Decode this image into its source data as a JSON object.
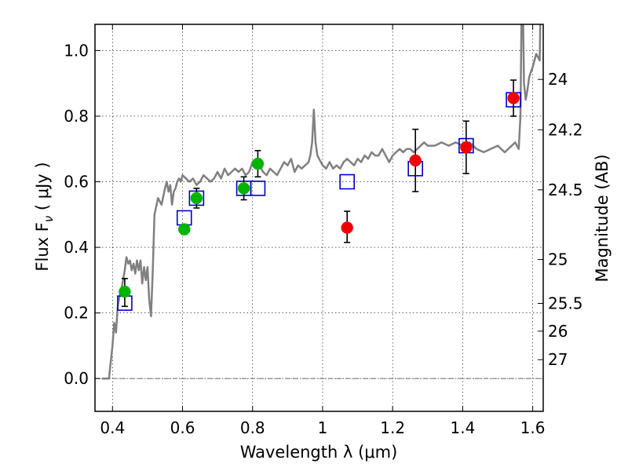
{
  "chart_data": {
    "type": "scatter",
    "xlabel": "Wavelength  λ (μm)",
    "ylabel": "Flux  F",
    "ylabel_sub": "ν",
    "ylabel_units": " ( μJy )",
    "y2label": "Magnitude (AB)",
    "xlim": [
      0.35,
      1.63
    ],
    "ylim": [
      -0.1,
      1.08
    ],
    "x_ticks": [
      0.4,
      0.6,
      0.8,
      1.0,
      1.2,
      1.4,
      1.6
    ],
    "x_tick_labels": [
      "0.4",
      "0.6",
      "0.8",
      "1",
      "1.2",
      "1.4",
      "1.6"
    ],
    "y_ticks": [
      0.0,
      0.2,
      0.4,
      0.6,
      0.8,
      1.0
    ],
    "y_tick_labels": [
      "0.0",
      "0.2",
      "0.4",
      "0.6",
      "0.8",
      "1.0"
    ],
    "y2_ticks": [
      {
        "mag": 24,
        "label": "24"
      },
      {
        "mag": 24.2,
        "label": "24.2"
      },
      {
        "mag": 24.5,
        "label": "24.5"
      },
      {
        "mag": 25,
        "label": "25"
      },
      {
        "mag": 25.5,
        "label": "25.5"
      },
      {
        "mag": 26,
        "label": "26"
      },
      {
        "mag": 27,
        "label": "27"
      }
    ],
    "grid": true,
    "colors": {
      "model_line": "#808080",
      "model_squares": "#0000cc",
      "green_points": "#00b400",
      "red_points": "#ee0000",
      "error_bars": "#000000",
      "zero_line": "#555555"
    },
    "series": [
      {
        "kind": "line",
        "points": [
          [
            0.37,
            0.0
          ],
          [
            0.39,
            0.0
          ],
          [
            0.4,
            0.1
          ],
          [
            0.405,
            0.17
          ],
          [
            0.41,
            0.14
          ],
          [
            0.415,
            0.22
          ],
          [
            0.42,
            0.25
          ],
          [
            0.425,
            0.27
          ],
          [
            0.43,
            0.3
          ],
          [
            0.435,
            0.33
          ],
          [
            0.44,
            0.37
          ],
          [
            0.445,
            0.35
          ],
          [
            0.45,
            0.36
          ],
          [
            0.455,
            0.33
          ],
          [
            0.46,
            0.35
          ],
          [
            0.465,
            0.32
          ],
          [
            0.47,
            0.36
          ],
          [
            0.475,
            0.33
          ],
          [
            0.48,
            0.36
          ],
          [
            0.485,
            0.29
          ],
          [
            0.49,
            0.34
          ],
          [
            0.495,
            0.3
          ],
          [
            0.5,
            0.34
          ],
          [
            0.505,
            0.24
          ],
          [
            0.51,
            0.19
          ],
          [
            0.515,
            0.33
          ],
          [
            0.52,
            0.5
          ],
          [
            0.53,
            0.55
          ],
          [
            0.54,
            0.53
          ],
          [
            0.55,
            0.58
          ],
          [
            0.555,
            0.6
          ],
          [
            0.56,
            0.57
          ],
          [
            0.565,
            0.59
          ],
          [
            0.57,
            0.53
          ],
          [
            0.575,
            0.57
          ],
          [
            0.58,
            0.58
          ],
          [
            0.585,
            0.6
          ],
          [
            0.59,
            0.61
          ],
          [
            0.595,
            0.6
          ],
          [
            0.6,
            0.62
          ],
          [
            0.61,
            0.61
          ],
          [
            0.62,
            0.6
          ],
          [
            0.63,
            0.61
          ],
          [
            0.64,
            0.59
          ],
          [
            0.65,
            0.6
          ],
          [
            0.66,
            0.62
          ],
          [
            0.67,
            0.61
          ],
          [
            0.68,
            0.6
          ],
          [
            0.69,
            0.61
          ],
          [
            0.7,
            0.63
          ],
          [
            0.71,
            0.61
          ],
          [
            0.72,
            0.64
          ],
          [
            0.73,
            0.62
          ],
          [
            0.74,
            0.63
          ],
          [
            0.75,
            0.64
          ],
          [
            0.76,
            0.63
          ],
          [
            0.77,
            0.64
          ],
          [
            0.78,
            0.62
          ],
          [
            0.79,
            0.63
          ],
          [
            0.8,
            0.66
          ],
          [
            0.81,
            0.64
          ],
          [
            0.82,
            0.65
          ],
          [
            0.83,
            0.63
          ],
          [
            0.84,
            0.62
          ],
          [
            0.85,
            0.64
          ],
          [
            0.86,
            0.63
          ],
          [
            0.87,
            0.62
          ],
          [
            0.88,
            0.64
          ],
          [
            0.89,
            0.66
          ],
          [
            0.9,
            0.65
          ],
          [
            0.91,
            0.67
          ],
          [
            0.92,
            0.63
          ],
          [
            0.93,
            0.65
          ],
          [
            0.94,
            0.64
          ],
          [
            0.95,
            0.65
          ],
          [
            0.96,
            0.66
          ],
          [
            0.965,
            0.68
          ],
          [
            0.97,
            0.72
          ],
          [
            0.975,
            0.82
          ],
          [
            0.98,
            0.72
          ],
          [
            0.985,
            0.68
          ],
          [
            0.99,
            0.67
          ],
          [
            1.0,
            0.65
          ],
          [
            1.01,
            0.64
          ],
          [
            1.02,
            0.66
          ],
          [
            1.03,
            0.64
          ],
          [
            1.04,
            0.65
          ],
          [
            1.05,
            0.64
          ],
          [
            1.06,
            0.66
          ],
          [
            1.07,
            0.67
          ],
          [
            1.08,
            0.66
          ],
          [
            1.09,
            0.65
          ],
          [
            1.1,
            0.67
          ],
          [
            1.11,
            0.66
          ],
          [
            1.12,
            0.68
          ],
          [
            1.13,
            0.67
          ],
          [
            1.14,
            0.69
          ],
          [
            1.15,
            0.68
          ],
          [
            1.16,
            0.68
          ],
          [
            1.17,
            0.7
          ],
          [
            1.18,
            0.68
          ],
          [
            1.19,
            0.66
          ],
          [
            1.2,
            0.68
          ],
          [
            1.21,
            0.69
          ],
          [
            1.22,
            0.7
          ],
          [
            1.23,
            0.69
          ],
          [
            1.24,
            0.7
          ],
          [
            1.25,
            0.7
          ],
          [
            1.26,
            0.69
          ],
          [
            1.27,
            0.7
          ],
          [
            1.28,
            0.71
          ],
          [
            1.29,
            0.72
          ],
          [
            1.3,
            0.71
          ],
          [
            1.32,
            0.71
          ],
          [
            1.34,
            0.72
          ],
          [
            1.36,
            0.71
          ],
          [
            1.38,
            0.72
          ],
          [
            1.4,
            0.71
          ],
          [
            1.42,
            0.72
          ],
          [
            1.44,
            0.7
          ],
          [
            1.46,
            0.69
          ],
          [
            1.48,
            0.7
          ],
          [
            1.5,
            0.71
          ],
          [
            1.51,
            0.7
          ],
          [
            1.52,
            0.69
          ],
          [
            1.53,
            0.7
          ],
          [
            1.54,
            0.71
          ],
          [
            1.55,
            0.72
          ],
          [
            1.56,
            0.7
          ],
          [
            1.565,
            0.8
          ],
          [
            1.57,
            1.3
          ],
          [
            1.575,
            0.9
          ],
          [
            1.58,
            0.85
          ],
          [
            1.585,
            0.88
          ],
          [
            1.59,
            0.92
          ],
          [
            1.6,
            0.95
          ],
          [
            1.61,
            0.99
          ],
          [
            1.62,
            0.97
          ],
          [
            1.625,
            1.3
          ]
        ]
      },
      {
        "kind": "open-squares",
        "points": [
          [
            0.435,
            0.23
          ],
          [
            0.605,
            0.49
          ],
          [
            0.64,
            0.55
          ],
          [
            0.775,
            0.58
          ],
          [
            0.815,
            0.58
          ],
          [
            1.07,
            0.6
          ],
          [
            1.265,
            0.64
          ],
          [
            1.41,
            0.71
          ],
          [
            1.545,
            0.85
          ]
        ]
      },
      {
        "kind": "green-points",
        "points": [
          {
            "x": 0.435,
            "y": 0.265,
            "lo": 0.22,
            "hi": 0.305
          },
          {
            "x": 0.605,
            "y": 0.455,
            "lo": 0.44,
            "hi": 0.47
          },
          {
            "x": 0.64,
            "y": 0.55,
            "lo": 0.52,
            "hi": 0.58
          },
          {
            "x": 0.775,
            "y": 0.58,
            "lo": 0.545,
            "hi": 0.615
          },
          {
            "x": 0.815,
            "y": 0.655,
            "lo": 0.615,
            "hi": 0.695
          }
        ]
      },
      {
        "kind": "red-points",
        "points": [
          {
            "x": 1.07,
            "y": 0.46,
            "lo": 0.415,
            "hi": 0.51
          },
          {
            "x": 1.265,
            "y": 0.665,
            "lo": 0.57,
            "hi": 0.76
          },
          {
            "x": 1.41,
            "y": 0.705,
            "lo": 0.625,
            "hi": 0.785
          },
          {
            "x": 1.545,
            "y": 0.855,
            "lo": 0.8,
            "hi": 0.91
          }
        ]
      }
    ]
  }
}
